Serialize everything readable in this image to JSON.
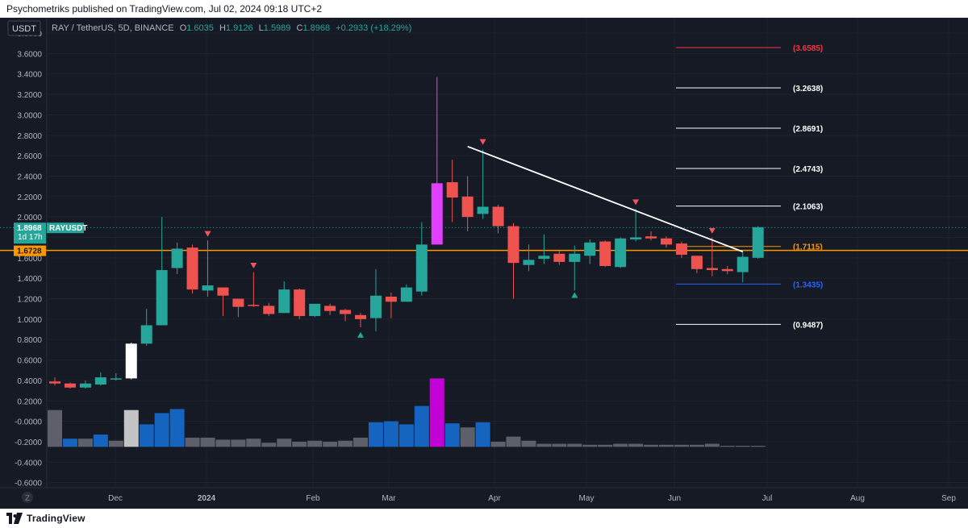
{
  "header": {
    "published": "Psychometriks published on TradingView.com, Jul 02, 2024 09:18 UTC+2"
  },
  "footer": {
    "brand": "TradingView"
  },
  "currency_button": "USDT",
  "z_button": "Z",
  "legend": {
    "symbol": "RAY / TetherUS, 5D, BINANCE",
    "o_label": "O",
    "o": "1.6035",
    "h_label": "H",
    "h": "1.9126",
    "l_label": "L",
    "l": "1.5989",
    "c_label": "C",
    "c": "1.8968",
    "change": "+0.2933 (+18.29%)"
  },
  "price_badge": {
    "value": "1.8968",
    "countdown": "1d 17h",
    "symbol": "RAYUSDT"
  },
  "level_badge": "1.6728",
  "colors": {
    "background": "#161a25",
    "up": "#26a69a",
    "down": "#ef5350",
    "vol_up": "#1565c0",
    "vol_down": "#5d606b",
    "highlight_magenta": "#e040fb",
    "support_line": "#ff9800",
    "axis_text": "#b2b5be"
  },
  "chart_data": {
    "type": "candlestick",
    "ylim": [
      -0.65,
      3.95
    ],
    "y_ticks": [
      "3.8000",
      "3.6000",
      "3.4000",
      "3.2000",
      "3.0000",
      "2.8000",
      "2.6000",
      "2.4000",
      "2.2000",
      "2.0000",
      "1.8000",
      "1.6000",
      "1.4000",
      "1.2000",
      "1.0000",
      "0.8000",
      "0.6000",
      "0.4000",
      "0.2000",
      "-0.0000",
      "-0.2000",
      "-0.4000",
      "-0.6000"
    ],
    "x_labels": [
      "Dec",
      "2024",
      "Feb",
      "Mar",
      "Apr",
      "May",
      "Jun",
      "Jul",
      "Aug",
      "Sep"
    ],
    "candles": [
      [
        0.37,
        0.39,
        0.43,
        0.35,
        "down"
      ],
      [
        0.37,
        0.33,
        0.38,
        0.32,
        "down"
      ],
      [
        0.33,
        0.37,
        0.4,
        0.32,
        "up"
      ],
      [
        0.36,
        0.43,
        0.48,
        0.35,
        "up"
      ],
      [
        0.42,
        0.42,
        0.47,
        0.4,
        "up"
      ],
      [
        0.42,
        0.76,
        0.77,
        0.41,
        "white"
      ],
      [
        0.76,
        0.94,
        1.1,
        0.74,
        "up"
      ],
      [
        0.94,
        1.48,
        2.0,
        0.95,
        "up"
      ],
      [
        1.5,
        1.69,
        1.75,
        1.44,
        "up"
      ],
      [
        1.7,
        1.29,
        1.73,
        1.25,
        "down"
      ],
      [
        1.28,
        1.33,
        1.77,
        1.22,
        "up"
      ],
      [
        1.31,
        1.23,
        1.28,
        1.03,
        "down"
      ],
      [
        1.2,
        1.12,
        1.2,
        1.02,
        "down"
      ],
      [
        1.14,
        1.14,
        1.46,
        1.12,
        "down"
      ],
      [
        1.13,
        1.05,
        1.16,
        1.03,
        "down"
      ],
      [
        1.06,
        1.29,
        1.37,
        1.06,
        "up"
      ],
      [
        1.29,
        1.03,
        1.3,
        1.0,
        "down"
      ],
      [
        1.03,
        1.15,
        1.15,
        1.02,
        "up"
      ],
      [
        1.13,
        1.08,
        1.15,
        1.04,
        "down"
      ],
      [
        1.09,
        1.05,
        1.1,
        0.98,
        "down"
      ],
      [
        1.04,
        1.0,
        1.06,
        0.92,
        "down"
      ],
      [
        1.01,
        1.23,
        1.49,
        0.88,
        "up"
      ],
      [
        1.22,
        1.17,
        1.26,
        1.01,
        "down"
      ],
      [
        1.17,
        1.31,
        1.34,
        1.17,
        "up"
      ],
      [
        1.27,
        1.73,
        1.95,
        1.23,
        "up"
      ],
      [
        1.73,
        2.33,
        3.37,
        1.73,
        "magenta"
      ],
      [
        2.34,
        2.19,
        2.56,
        1.95,
        "down"
      ],
      [
        2.2,
        2.0,
        2.4,
        1.86,
        "down"
      ],
      [
        2.03,
        2.1,
        2.66,
        1.98,
        "up"
      ],
      [
        2.1,
        1.91,
        2.12,
        1.84,
        "down"
      ],
      [
        1.91,
        1.55,
        1.94,
        1.2,
        "down"
      ],
      [
        1.53,
        1.58,
        1.73,
        1.47,
        "up"
      ],
      [
        1.59,
        1.62,
        1.83,
        1.54,
        "up"
      ],
      [
        1.64,
        1.56,
        1.67,
        1.53,
        "down"
      ],
      [
        1.56,
        1.64,
        1.72,
        1.28,
        "up"
      ],
      [
        1.62,
        1.75,
        1.78,
        1.54,
        "up"
      ],
      [
        1.76,
        1.52,
        1.77,
        1.51,
        "down"
      ],
      [
        1.51,
        1.79,
        1.8,
        1.5,
        "up"
      ],
      [
        1.78,
        1.8,
        2.08,
        1.76,
        "up"
      ],
      [
        1.81,
        1.79,
        1.86,
        1.77,
        "down"
      ],
      [
        1.79,
        1.73,
        1.81,
        1.7,
        "down"
      ],
      [
        1.74,
        1.63,
        1.76,
        1.6,
        "down"
      ],
      [
        1.62,
        1.49,
        1.62,
        1.45,
        "down"
      ],
      [
        1.5,
        1.48,
        1.8,
        1.42,
        "down"
      ],
      [
        1.49,
        1.47,
        1.52,
        1.44,
        "down"
      ],
      [
        1.46,
        1.61,
        1.66,
        1.36,
        "up"
      ],
      [
        1.6,
        1.9,
        1.91,
        1.59,
        "up"
      ]
    ],
    "volume": [
      [
        0.36,
        "gray"
      ],
      [
        0.08,
        "blue"
      ],
      [
        0.08,
        "gray"
      ],
      [
        0.12,
        "blue"
      ],
      [
        0.06,
        "gray"
      ],
      [
        0.36,
        "white"
      ],
      [
        0.22,
        "blue"
      ],
      [
        0.33,
        "blue"
      ],
      [
        0.37,
        "blue"
      ],
      [
        0.09,
        "gray"
      ],
      [
        0.09,
        "gray"
      ],
      [
        0.07,
        "gray"
      ],
      [
        0.07,
        "gray"
      ],
      [
        0.08,
        "gray"
      ],
      [
        0.04,
        "gray"
      ],
      [
        0.08,
        "gray"
      ],
      [
        0.05,
        "gray"
      ],
      [
        0.06,
        "gray"
      ],
      [
        0.05,
        "gray"
      ],
      [
        0.06,
        "gray"
      ],
      [
        0.09,
        "gray"
      ],
      [
        0.24,
        "blue"
      ],
      [
        0.25,
        "blue"
      ],
      [
        0.22,
        "blue"
      ],
      [
        0.4,
        "blue"
      ],
      [
        0.67,
        "magenta"
      ],
      [
        0.23,
        "blue"
      ],
      [
        0.19,
        "gray"
      ],
      [
        0.24,
        "blue"
      ],
      [
        0.05,
        "gray"
      ],
      [
        0.1,
        "gray"
      ],
      [
        0.06,
        "gray"
      ],
      [
        0.03,
        "gray"
      ],
      [
        0.03,
        "gray"
      ],
      [
        0.03,
        "gray"
      ],
      [
        0.02,
        "gray"
      ],
      [
        0.02,
        "gray"
      ],
      [
        0.03,
        "gray"
      ],
      [
        0.03,
        "gray"
      ],
      [
        0.02,
        "gray"
      ],
      [
        0.02,
        "gray"
      ],
      [
        0.02,
        "gray"
      ],
      [
        0.02,
        "gray"
      ],
      [
        0.03,
        "gray"
      ],
      [
        0.01,
        "gray"
      ],
      [
        0.01,
        "gray"
      ],
      [
        0.01,
        "gray"
      ]
    ],
    "markers": [
      {
        "i": 10,
        "price": 1.83,
        "dir": "down"
      },
      {
        "i": 13,
        "price": 1.52,
        "dir": "down"
      },
      {
        "i": 20,
        "price": 0.85,
        "dir": "up"
      },
      {
        "i": 28,
        "price": 2.73,
        "dir": "down"
      },
      {
        "i": 34,
        "price": 1.24,
        "dir": "up"
      },
      {
        "i": 38,
        "price": 2.14,
        "dir": "down"
      },
      {
        "i": 43,
        "price": 1.86,
        "dir": "down"
      }
    ],
    "trendline": {
      "from": [
        27,
        2.69
      ],
      "to": [
        45,
        1.66
      ]
    },
    "support_level": 1.6728,
    "current_price": 1.8968,
    "levels": [
      {
        "value": 3.6585,
        "label": "(3.6585)",
        "color": "#f23645"
      },
      {
        "value": 3.2638,
        "label": "(3.2638)",
        "color": "#ffffff"
      },
      {
        "value": 2.8691,
        "label": "(2.8691)",
        "color": "#ffffff"
      },
      {
        "value": 2.4743,
        "label": "(2.4743)",
        "color": "#ffffff"
      },
      {
        "value": 2.1063,
        "label": "(2.1063)",
        "color": "#ffffff"
      },
      {
        "value": 1.7115,
        "label": "(1.7115)",
        "color": "#ff9800"
      },
      {
        "value": 1.3435,
        "label": "(1.3435)",
        "color": "#2962ff"
      },
      {
        "value": 0.9487,
        "label": "(0.9487)",
        "color": "#ffffff"
      }
    ]
  }
}
